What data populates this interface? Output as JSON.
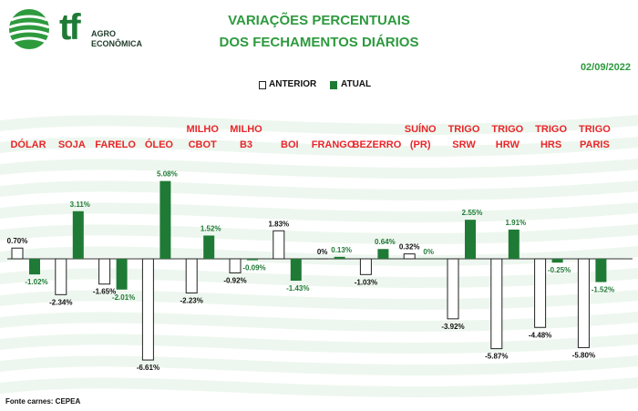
{
  "header": {
    "brand_name": "tf",
    "brand_line1": "AGRO",
    "brand_line2": "ECONÔMICA",
    "title_line1": "VARIAÇÕES PERCENTUAIS",
    "title_line2": "DOS FECHAMENTOS DIÁRIOS",
    "date": "02/09/2022"
  },
  "legend": {
    "previous": "ANTERIOR",
    "current": "ATUAL"
  },
  "footer": {
    "source": "Fonte carnes: CEPEA"
  },
  "colors": {
    "current": "#1f7a35",
    "category": "#e8262a",
    "title": "#2d9a3e",
    "previous_fill": "#ffffff"
  },
  "chart_data": {
    "type": "bar",
    "title": "VARIAÇÕES PERCENTUAIS DOS FECHAMENTOS DIÁRIOS",
    "categories": [
      "DÓLAR",
      "SOJA",
      "FARELO",
      "ÓLEO",
      "MILHO CBOT",
      "MILHO B3",
      "BOI",
      "FRANGO",
      "BEZERRO",
      "SUÍNO (PR)",
      "TRIGO SRW",
      "TRIGO HRW",
      "TRIGO HRS",
      "TRIGO PARIS"
    ],
    "series": [
      {
        "name": "ANTERIOR",
        "values": [
          0.7,
          -2.34,
          -1.65,
          -6.61,
          -2.23,
          -0.92,
          1.83,
          0,
          -1.03,
          0.32,
          -3.92,
          -5.87,
          -4.48,
          -5.8
        ],
        "labels": [
          "0.70%",
          "-2.34%",
          "-1.65%",
          "-6.61%",
          "-2.23%",
          "-0.92%",
          "1.83%",
          "0%",
          "-1.03%",
          "0.32%",
          "-3.92%",
          "-5.87%",
          "-4.48%",
          "-5.80%"
        ]
      },
      {
        "name": "ATUAL",
        "values": [
          -1.02,
          3.11,
          -2.01,
          5.08,
          1.52,
          -0.09,
          -1.43,
          0.13,
          0.64,
          0,
          2.55,
          1.91,
          -0.25,
          -1.52
        ],
        "labels": [
          "-1.02%",
          "3.11%",
          "-2.01%",
          "5.08%",
          "1.52%",
          "-0.09%",
          "-1.43%",
          "0.13%",
          "0.64%",
          "0%",
          "2.55%",
          "1.91%",
          "-0.25%",
          "-1.52%"
        ]
      }
    ],
    "ylim": [
      -7,
      5.5
    ],
    "grid": false,
    "legend_position": "top-center"
  }
}
